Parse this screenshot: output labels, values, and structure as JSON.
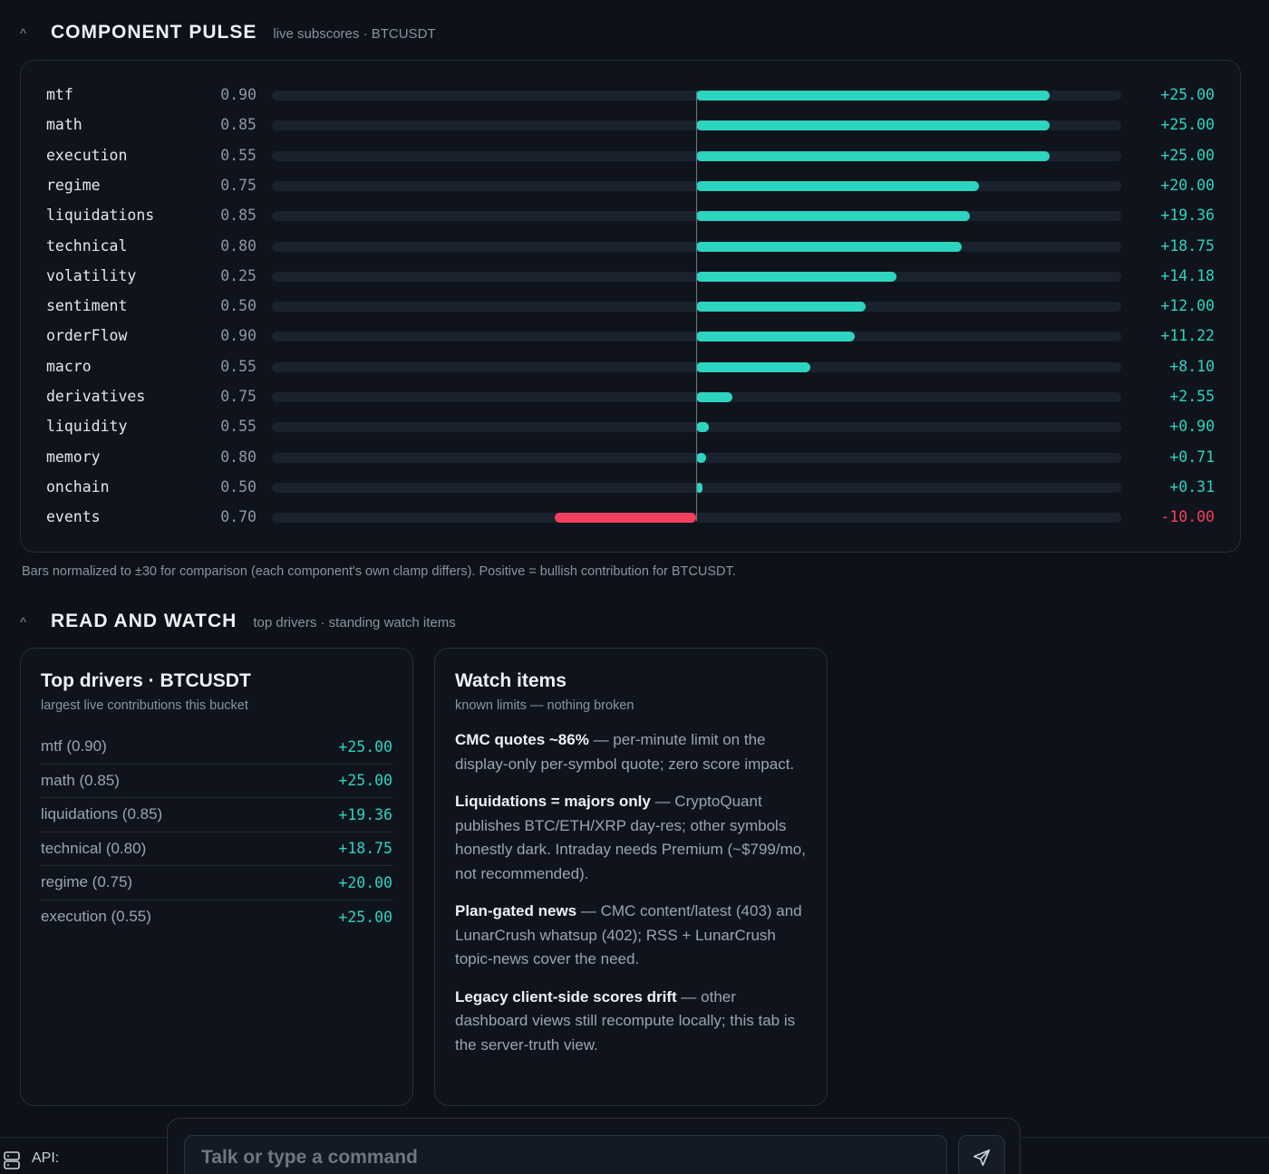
{
  "component_pulse": {
    "caret": "^",
    "title": "COMPONENT PULSE",
    "subtitle": "live subscores · BTCUSDT",
    "scale_max": 30,
    "rows": [
      {
        "name": "mtf",
        "weight": "0.90",
        "value": "+25.00",
        "score": 25.0
      },
      {
        "name": "math",
        "weight": "0.85",
        "value": "+25.00",
        "score": 25.0
      },
      {
        "name": "execution",
        "weight": "0.55",
        "value": "+25.00",
        "score": 25.0
      },
      {
        "name": "regime",
        "weight": "0.75",
        "value": "+20.00",
        "score": 20.0
      },
      {
        "name": "liquidations",
        "weight": "0.85",
        "value": "+19.36",
        "score": 19.36
      },
      {
        "name": "technical",
        "weight": "0.80",
        "value": "+18.75",
        "score": 18.75
      },
      {
        "name": "volatility",
        "weight": "0.25",
        "value": "+14.18",
        "score": 14.18
      },
      {
        "name": "sentiment",
        "weight": "0.50",
        "value": "+12.00",
        "score": 12.0
      },
      {
        "name": "orderFlow",
        "weight": "0.90",
        "value": "+11.22",
        "score": 11.22
      },
      {
        "name": "macro",
        "weight": "0.55",
        "value": "+8.10",
        "score": 8.1
      },
      {
        "name": "derivatives",
        "weight": "0.75",
        "value": "+2.55",
        "score": 2.55
      },
      {
        "name": "liquidity",
        "weight": "0.55",
        "value": "+0.90",
        "score": 0.9
      },
      {
        "name": "memory",
        "weight": "0.80",
        "value": "+0.71",
        "score": 0.71
      },
      {
        "name": "onchain",
        "weight": "0.50",
        "value": "+0.31",
        "score": 0.31
      },
      {
        "name": "events",
        "weight": "0.70",
        "value": "-10.00",
        "score": -10.0
      }
    ],
    "footnote": "Bars normalized to ±30 for comparison (each component's own clamp differs). Positive = bullish contribution for BTCUSDT."
  },
  "read_and_watch": {
    "caret": "^",
    "title": "READ AND WATCH",
    "subtitle": "top drivers · standing watch items"
  },
  "top_drivers": {
    "title": "Top drivers · BTCUSDT",
    "subtitle": "largest live contributions this bucket",
    "items": [
      {
        "label": "mtf (0.90)",
        "value": "+25.00"
      },
      {
        "label": "math (0.85)",
        "value": "+25.00"
      },
      {
        "label": "liquidations (0.85)",
        "value": "+19.36"
      },
      {
        "label": "technical (0.80)",
        "value": "+18.75"
      },
      {
        "label": "regime (0.75)",
        "value": "+20.00"
      },
      {
        "label": "execution (0.55)",
        "value": "+25.00"
      }
    ]
  },
  "watch_items": {
    "title": "Watch items",
    "subtitle": "known limits — nothing broken",
    "items": [
      {
        "head": "CMC quotes ~86%",
        "body": " — per-minute limit on the display-only per-symbol quote; zero score impact."
      },
      {
        "head": "Liquidations = majors only",
        "body": " — CryptoQuant publishes BTC/ETH/XRP day-res; other symbols honestly dark. Intraday needs Premium (~$799/mo, not recommended)."
      },
      {
        "head": "Plan-gated news",
        "body": " — CMC content/latest (403) and LunarCrush whatsup (402); RSS + LunarCrush topic-news cover the need."
      },
      {
        "head": "Legacy client-side scores drift",
        "body": " — other dashboard views still recompute locally; this tab is the server-truth view."
      }
    ]
  },
  "status_bar": {
    "api_label": "API:",
    "api_icon": "server-icon"
  },
  "command_bar": {
    "placeholder": "Talk or type a command",
    "send_icon": "send-icon"
  },
  "colors": {
    "positive": "#2dd4bf",
    "negative": "#f43f5e",
    "background": "#0d1118"
  }
}
